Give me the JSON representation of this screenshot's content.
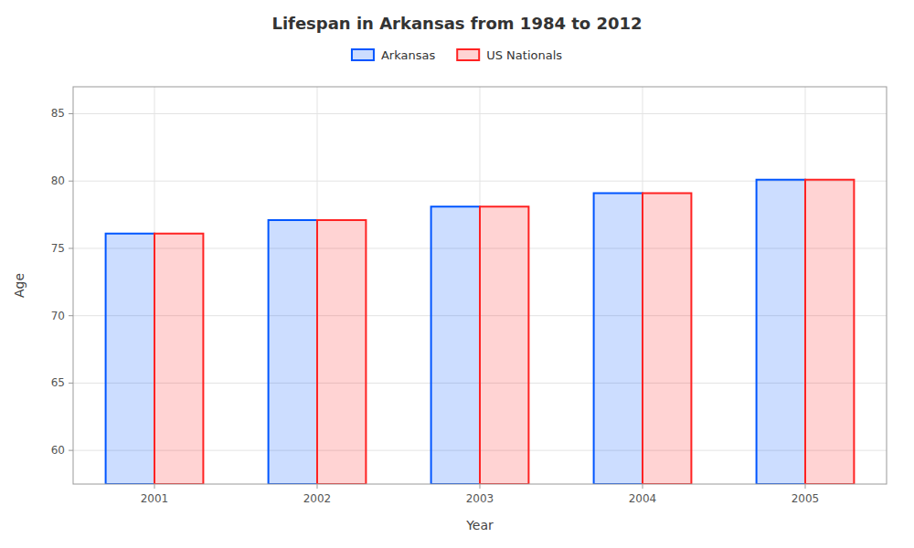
{
  "chart_data": {
    "type": "bar",
    "title": "Lifespan in Arkansas from 1984 to 2012",
    "x_label": "Year",
    "y_label": "Age",
    "categories": [
      "2001",
      "2002",
      "2003",
      "2004",
      "2005"
    ],
    "series": [
      {
        "name": "Arkansas",
        "color": "#0055ff",
        "values": [
          76.1,
          77.1,
          78.1,
          79.1,
          80.1
        ]
      },
      {
        "name": "US Nationals",
        "color": "#ff2222",
        "values": [
          76.1,
          77.1,
          78.1,
          79.1,
          80.1
        ]
      }
    ],
    "ylim": [
      57.5,
      87
    ],
    "yticks": [
      60,
      65,
      70,
      75,
      80,
      85
    ],
    "grid": true,
    "legend": "top"
  }
}
